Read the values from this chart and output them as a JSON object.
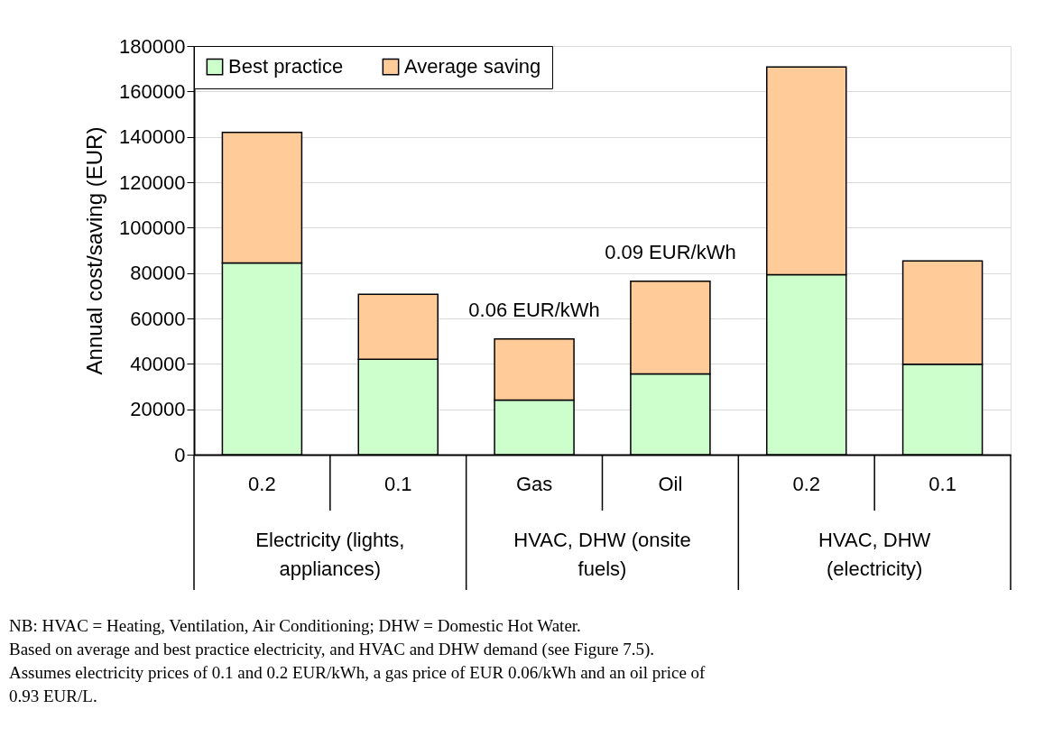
{
  "chart_data": {
    "type": "bar",
    "stacked": true,
    "ylabel": "Annual cost/saving (EUR)",
    "categories": [
      "0.2",
      "0.1",
      "Gas",
      "Oil",
      "0.2",
      "0.1"
    ],
    "series": [
      {
        "name": "Best practice",
        "color": "#ccffcc",
        "values": [
          84400,
          42000,
          24000,
          35600,
          79300,
          39800
        ]
      },
      {
        "name": "Average saving",
        "color": "#ffcc99",
        "values": [
          57600,
          28600,
          27000,
          40800,
          91500,
          45500
        ]
      }
    ],
    "ylim": [
      0,
      180000
    ],
    "yticks": [
      0,
      20000,
      40000,
      60000,
      80000,
      100000,
      120000,
      140000,
      160000,
      180000
    ],
    "grid": "y",
    "legend": "top left",
    "annotations": [
      "Electricity (lights, appliances)",
      "HVAC, DHW (onsite fuels)",
      "HVAC, DHW (electricity)",
      "0.06 EUR/kWh",
      "0.09 EUR/kWh",
      "NB: HVAC = Heating, Ventilation, Air Conditioning; DHW = Domestic Hot Water.",
      "Based on average and best practice electricity, and HVAC and DHW demand (see Figure 7.5).",
      "Assumes electricity prices of 0.1 and 0.2 EUR/kWh, a gas price of EUR 0.06/kWh and an oil price of 0.93 EUR/L."
    ]
  }
}
